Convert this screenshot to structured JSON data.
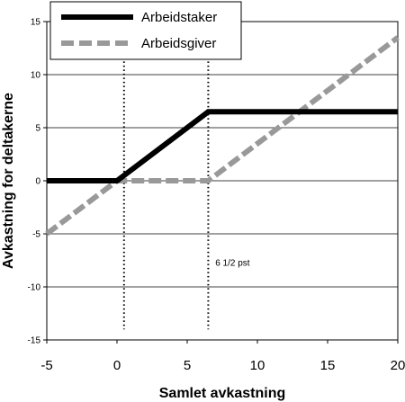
{
  "chart_data": {
    "type": "line",
    "xlabel": "Samlet avkastning",
    "ylabel": "Avkastning for deltakerne",
    "xlim": [
      -5,
      20
    ],
    "ylim": [
      -15,
      15
    ],
    "xticks": [
      -5,
      0,
      5,
      10,
      15,
      20
    ],
    "yticks": [
      -15,
      -10,
      -5,
      0,
      5,
      10,
      15
    ],
    "grid": "horizontal",
    "legend_position": "top-left",
    "series": [
      {
        "name": "Arbeidstaker",
        "color": "#000000",
        "style": "solid",
        "x": [
          -5,
          0,
          6.5,
          20
        ],
        "y": [
          0,
          0,
          6.5,
          6.5
        ]
      },
      {
        "name": "Arbeidsgiver",
        "color": "#999999",
        "style": "dashed",
        "x": [
          -5,
          0,
          6.5,
          20
        ],
        "y": [
          -5,
          0,
          0,
          13.5
        ]
      }
    ],
    "vlines": [
      {
        "x": 0.5,
        "style": "dotted"
      },
      {
        "x": 6.5,
        "style": "dotted"
      }
    ],
    "annotations": [
      {
        "text": "6 1/2 pst",
        "x": 7,
        "y": -8
      }
    ]
  }
}
